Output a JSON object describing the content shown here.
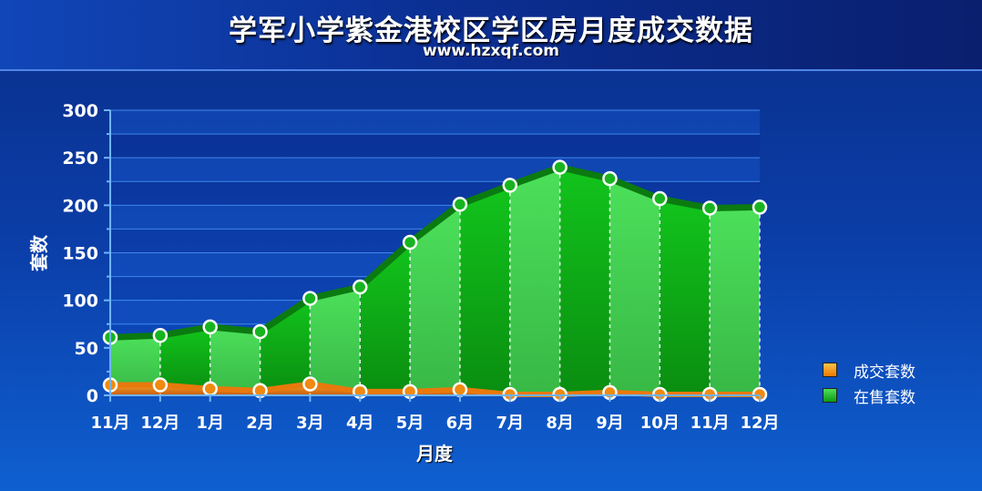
{
  "title": "学军小学紫金港校区学区房月度成交数据",
  "subtitle": "www.hzxqf.com",
  "chart_data": {
    "type": "area",
    "categories": [
      "11月",
      "12月",
      "1月",
      "2月",
      "3月",
      "4月",
      "5月",
      "6月",
      "7月",
      "8月",
      "9月",
      "10月",
      "11月",
      "12月"
    ],
    "series": [
      {
        "name": "成交套数",
        "values": [
          11,
          11,
          7,
          5,
          12,
          4,
          4,
          6,
          1,
          1,
          3,
          1,
          1,
          1
        ],
        "color": "#f07d0a"
      },
      {
        "name": "在售套数",
        "values": [
          61,
          63,
          72,
          67,
          102,
          114,
          161,
          201,
          221,
          240,
          228,
          207,
          197,
          198
        ],
        "color": "#16b71e"
      }
    ],
    "xlabel": "月度",
    "ylabel": "套数",
    "ylim": [
      0,
      300
    ],
    "yticks": [
      0,
      50,
      100,
      150,
      200,
      250,
      300
    ],
    "grid": true,
    "legend_position": "right"
  }
}
